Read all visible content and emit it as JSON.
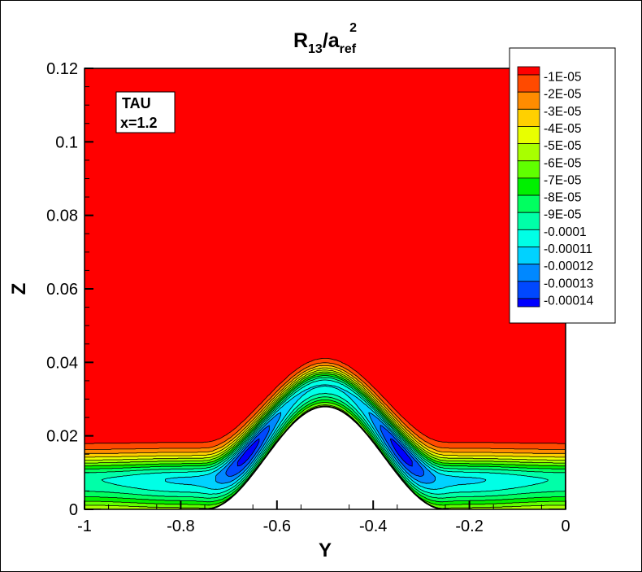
{
  "chart_data": {
    "type": "contour",
    "title": {
      "base": "R",
      "sub": "13",
      "mid": "/a",
      "sub2": "ref",
      "sup": "2"
    },
    "xlabel": "Y",
    "ylabel": "Z",
    "xlim": [
      -1,
      0
    ],
    "ylim": [
      0,
      0.12
    ],
    "xticks": [
      -1,
      -0.8,
      -0.6,
      -0.4,
      -0.2,
      0
    ],
    "xtick_labels": [
      "-1",
      "-0.8",
      "-0.6",
      "-0.4",
      "-0.2",
      "0"
    ],
    "yticks": [
      0,
      0.02,
      0.04,
      0.06,
      0.08,
      0.1,
      0.12
    ],
    "ytick_labels": [
      "0",
      "0.02",
      "0.04",
      "0.06",
      "0.08",
      "0.1",
      "0.12"
    ],
    "grid": false,
    "levels": [
      -1e-05,
      -2e-05,
      -3e-05,
      -4e-05,
      -5e-05,
      -6e-05,
      -7e-05,
      -8e-05,
      -9e-05,
      -0.0001,
      -0.00011,
      -0.00012,
      -0.00013,
      -0.00014
    ],
    "legend": {
      "placement": "top-right",
      "labels": [
        "-1E-05",
        "-2E-05",
        "-3E-05",
        "-4E-05",
        "-5E-05",
        "-6E-05",
        "-7E-05",
        "-8E-05",
        "-9E-05",
        "-0.0001",
        "-0.00011",
        "-0.00012",
        "-0.00013",
        "-0.00014"
      ]
    },
    "colors": [
      "#ff0000",
      "#ff4a00",
      "#ff8c00",
      "#ffd000",
      "#e8ff00",
      "#a8ff00",
      "#60ff00",
      "#00f000",
      "#00ff60",
      "#00ffa8",
      "#00ffe6",
      "#00d2ff",
      "#0088ff",
      "#0048ff",
      "#0000ff"
    ],
    "annotation": [
      "TAU",
      "x=1.2"
    ]
  }
}
